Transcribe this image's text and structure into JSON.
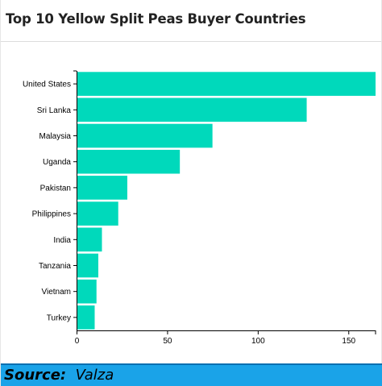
{
  "title": "Top 10 Yellow Split Peas Buyer Countries",
  "source": {
    "label": "Source:",
    "value": "Valza"
  },
  "colors": {
    "bar": "#00d9bb",
    "source_background": "#1aa3e8"
  },
  "chart_data": {
    "type": "bar",
    "orientation": "horizontal",
    "title": "",
    "xlabel": "",
    "ylabel": "",
    "categories": [
      "United States",
      "Sri Lanka",
      "Malaysia",
      "Uganda",
      "Pakistan",
      "Philippines",
      "India",
      "Tanzania",
      "Vietnam",
      "Turkey"
    ],
    "values": [
      165,
      127,
      75,
      57,
      28,
      23,
      14,
      12,
      11,
      10
    ],
    "xlim": [
      0,
      165
    ],
    "xticks": [
      0,
      50,
      100,
      150
    ],
    "grid": false,
    "legend": "none"
  }
}
